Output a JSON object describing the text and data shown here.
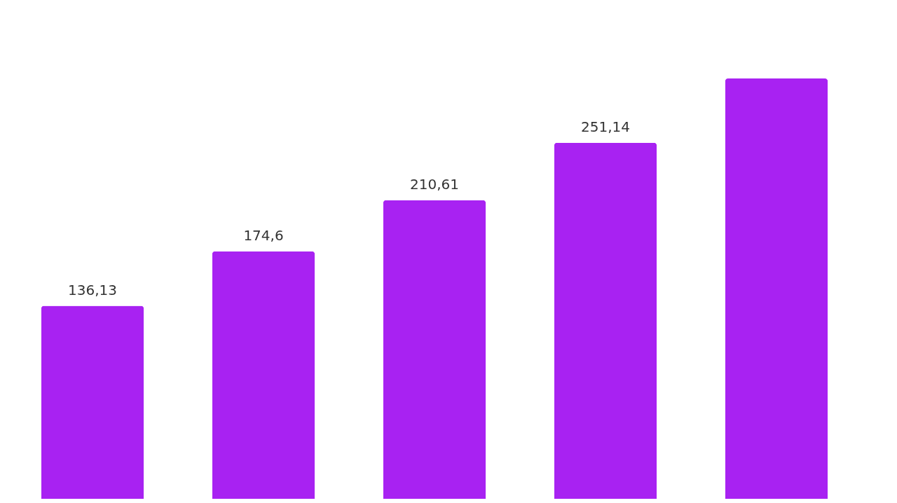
{
  "chart_data": {
    "type": "bar",
    "categories": [
      null,
      null,
      null,
      null,
      null
    ],
    "values": [
      136.13,
      174.6,
      210.61,
      251.14,
      296.5
    ],
    "value_labels": [
      "136,13",
      "174,6",
      "210,61",
      "251,14",
      null
    ],
    "color": "#a822f2"
  }
}
